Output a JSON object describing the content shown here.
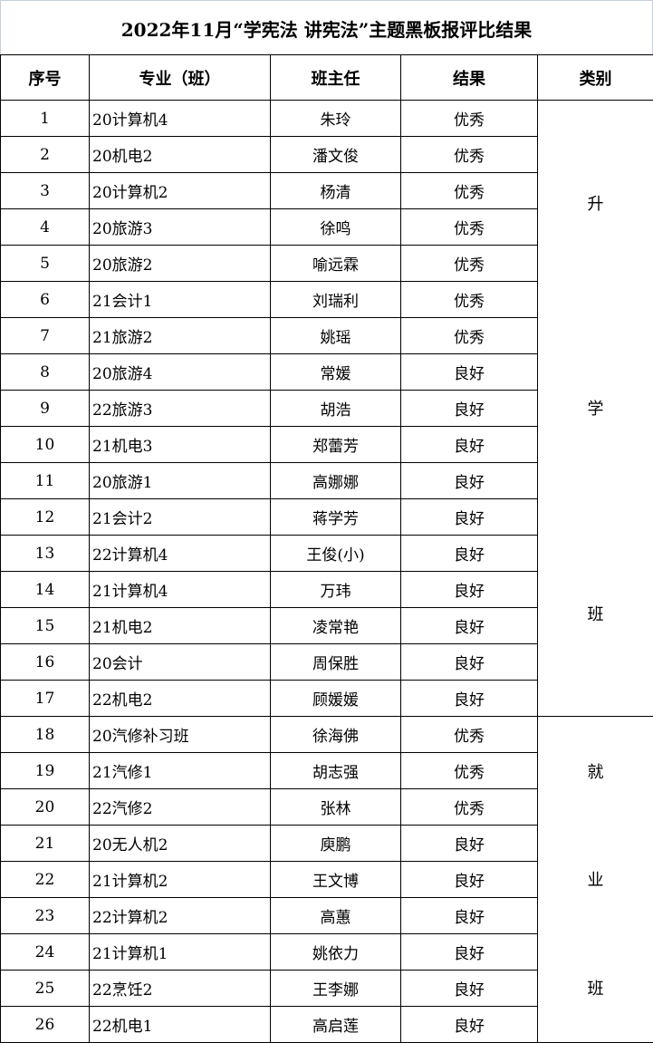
{
  "title": "2022年11月“学宪法 讲宪法”主题黑板报评比结果",
  "headers": [
    "序号",
    "专业（班）",
    "班主任",
    "结果",
    "类别"
  ],
  "rows": [
    [
      "1",
      "20计算机4",
      "朱玲",
      "优秀"
    ],
    [
      "2",
      "20机电2",
      "潘文俊",
      "优秀"
    ],
    [
      "3",
      "20计算机2",
      "杨清",
      "优秀"
    ],
    [
      "4",
      "20旅游3",
      "徐鸣",
      "优秀"
    ],
    [
      "5",
      "20旅游2",
      "喻远霖",
      "优秀"
    ],
    [
      "6",
      "21会计1",
      "刘瑞利",
      "优秀"
    ],
    [
      "7",
      "21旅游2",
      "姚瑶",
      "优秀"
    ],
    [
      "8",
      "20旅游4",
      "常媛",
      "良好"
    ],
    [
      "9",
      "22旅游3",
      "胡浩",
      "良好"
    ],
    [
      "10",
      "21机电3",
      "郑蕾芳",
      "良好"
    ],
    [
      "11",
      "20旅游1",
      "高娜娜",
      "良好"
    ],
    [
      "12",
      "21会计2",
      "蒋学芳",
      "良好"
    ],
    [
      "13",
      "22计算机4",
      "王俊(小)",
      "良好"
    ],
    [
      "14",
      "21计算机4",
      "万玮",
      "良好"
    ],
    [
      "15",
      "21机电2",
      "凌常艳",
      "良好"
    ],
    [
      "16",
      "20会计",
      "周保胜",
      "良好"
    ],
    [
      "17",
      "22机电2",
      "顾媛媛",
      "良好"
    ],
    [
      "18",
      "20汽修补习班",
      "徐海佛",
      "优秀"
    ],
    [
      "19",
      "21汽修1",
      "胡志强",
      "优秀"
    ],
    [
      "20",
      "22汽修2",
      "张林",
      "优秀"
    ],
    [
      "21",
      "20无人机2",
      "庾鹏",
      "良好"
    ],
    [
      "22",
      "21计算机2",
      "王文博",
      "良好"
    ],
    [
      "23",
      "22计算机2",
      "高蕙",
      "良好"
    ],
    [
      "24",
      "21计算机1",
      "姚依力",
      "良好"
    ],
    [
      "25",
      "22烹饪2",
      "王李娜",
      "良好"
    ],
    [
      "26",
      "22机电1",
      "高启莲",
      "良好"
    ]
  ],
  "categories": [
    {
      "chars": [
        "升",
        "学",
        "班"
      ],
      "span": 17
    },
    {
      "chars": [
        "就",
        "业",
        "班"
      ],
      "span": 9
    }
  ]
}
